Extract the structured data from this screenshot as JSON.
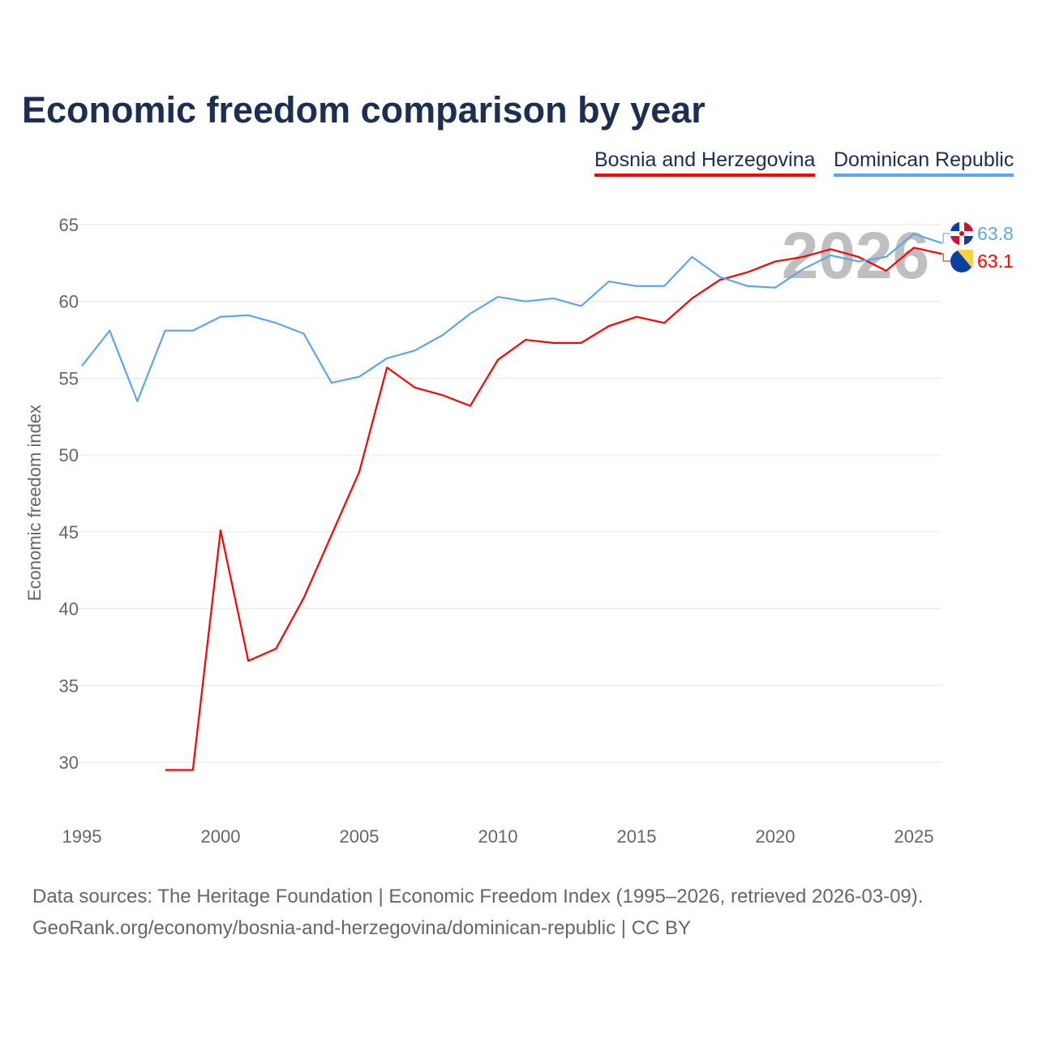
{
  "title": "Economic freedom comparison by year",
  "footer": {
    "line1": "Data sources: The Heritage Foundation | Economic Freedom Index (1995–2026, retrieved 2026-03-09).",
    "line2": "GeoRank.org/economy/bosnia-and-herzegovina/dominican-republic | CC BY"
  },
  "chart_data": {
    "type": "line",
    "title": "Economic freedom comparison by year",
    "xlabel": "",
    "ylabel": "Economic freedom index",
    "xlim": [
      1995,
      2026
    ],
    "ylim": [
      27,
      66
    ],
    "xticks": [
      1995,
      2000,
      2005,
      2010,
      2015,
      2020,
      2025
    ],
    "yticks": [
      30,
      35,
      40,
      45,
      50,
      55,
      60,
      65
    ],
    "grid": true,
    "legend": "top-right",
    "watermark_year": "2026",
    "series": [
      {
        "name": "Bosnia and Herzegovina",
        "color": "#ff0000",
        "end_label": "63.1",
        "x": [
          1998,
          1999,
          2000,
          2001,
          2002,
          2003,
          2004,
          2005,
          2006,
          2007,
          2008,
          2009,
          2010,
          2011,
          2012,
          2013,
          2014,
          2015,
          2016,
          2017,
          2018,
          2019,
          2020,
          2021,
          2022,
          2023,
          2024,
          2025,
          2026
        ],
        "values": [
          29.5,
          29.5,
          45.1,
          36.6,
          37.4,
          40.7,
          44.8,
          48.9,
          55.7,
          54.4,
          53.9,
          53.2,
          56.2,
          57.5,
          57.3,
          57.3,
          58.4,
          59.0,
          58.6,
          60.2,
          61.4,
          61.9,
          62.6,
          62.9,
          63.4,
          62.9,
          62.0,
          63.5,
          63.1
        ]
      },
      {
        "name": "Dominican Republic",
        "color": "#5da6ea",
        "end_label": "63.8",
        "x": [
          1995,
          1996,
          1997,
          1998,
          1999,
          2000,
          2001,
          2002,
          2003,
          2004,
          2005,
          2006,
          2007,
          2008,
          2009,
          2010,
          2011,
          2012,
          2013,
          2014,
          2015,
          2016,
          2017,
          2018,
          2019,
          2020,
          2021,
          2022,
          2023,
          2024,
          2025,
          2026
        ],
        "values": [
          55.8,
          58.1,
          53.5,
          58.1,
          58.1,
          59.0,
          59.1,
          58.6,
          57.9,
          54.7,
          55.1,
          56.3,
          56.8,
          57.8,
          59.2,
          60.3,
          60.0,
          60.2,
          59.7,
          61.3,
          61.0,
          61.0,
          62.9,
          61.6,
          61.0,
          60.9,
          62.1,
          63.0,
          62.6,
          62.9,
          64.4,
          63.8
        ]
      }
    ]
  }
}
